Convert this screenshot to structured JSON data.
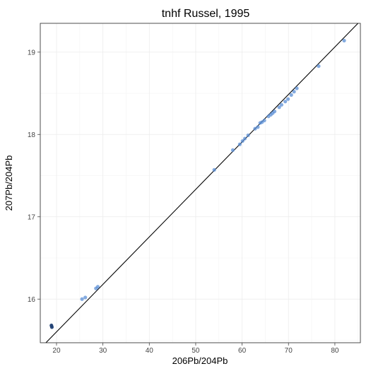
{
  "chart_data": {
    "type": "scatter",
    "title": "tnhf Russel, 1995",
    "xlabel": "206Pb/204Pb",
    "ylabel": "207Pb/204Pb",
    "xlim": [
      16.5,
      85.5
    ],
    "ylim": [
      15.47,
      19.35
    ],
    "x_ticks": [
      20,
      30,
      40,
      50,
      60,
      70,
      80
    ],
    "y_ticks": [
      16,
      17,
      18,
      19
    ],
    "grid": true,
    "point_color": "#5b8fd6",
    "dark_point_color": "#1f3f73",
    "line_color": "#000000",
    "reference_line": {
      "x": [
        16.5,
        85.5
      ],
      "y": [
        15.4,
        19.38
      ]
    },
    "points": [
      {
        "x": 18.9,
        "y": 15.68,
        "dark": true
      },
      {
        "x": 19.0,
        "y": 15.66,
        "dark": true
      },
      {
        "x": 25.5,
        "y": 16.0
      },
      {
        "x": 26.2,
        "y": 16.02
      },
      {
        "x": 28.5,
        "y": 16.13
      },
      {
        "x": 28.9,
        "y": 16.15
      },
      {
        "x": 54.0,
        "y": 17.57
      },
      {
        "x": 58.0,
        "y": 17.81
      },
      {
        "x": 59.5,
        "y": 17.88
      },
      {
        "x": 60.1,
        "y": 17.92
      },
      {
        "x": 60.6,
        "y": 17.95
      },
      {
        "x": 61.3,
        "y": 17.99
      },
      {
        "x": 62.8,
        "y": 18.07
      },
      {
        "x": 63.4,
        "y": 18.09
      },
      {
        "x": 63.9,
        "y": 18.14
      },
      {
        "x": 64.3,
        "y": 18.15
      },
      {
        "x": 64.8,
        "y": 18.17
      },
      {
        "x": 65.7,
        "y": 18.22
      },
      {
        "x": 66.2,
        "y": 18.24
      },
      {
        "x": 66.6,
        "y": 18.26
      },
      {
        "x": 67.0,
        "y": 18.28
      },
      {
        "x": 68.0,
        "y": 18.33
      },
      {
        "x": 68.5,
        "y": 18.36
      },
      {
        "x": 69.3,
        "y": 18.4
      },
      {
        "x": 69.9,
        "y": 18.43
      },
      {
        "x": 70.6,
        "y": 18.48
      },
      {
        "x": 71.2,
        "y": 18.52
      },
      {
        "x": 71.8,
        "y": 18.56
      },
      {
        "x": 76.5,
        "y": 18.83
      },
      {
        "x": 82.0,
        "y": 19.14
      }
    ]
  }
}
